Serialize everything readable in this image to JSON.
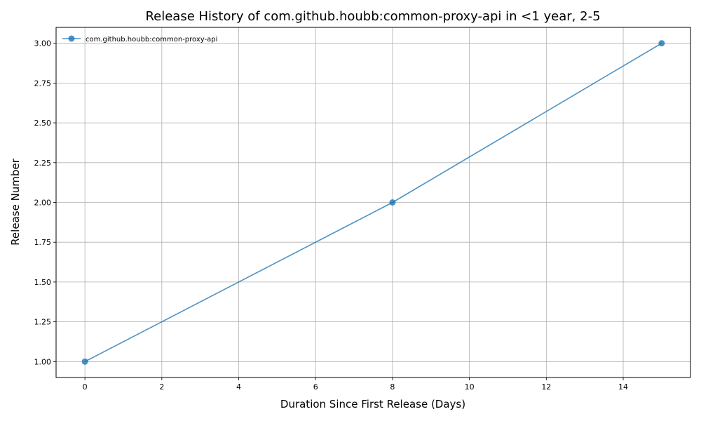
{
  "chart_data": {
    "type": "line",
    "title": "Release History of com.github.houbb:common-proxy-api in <1 year, 2-5",
    "xlabel": "Duration Since First Release (Days)",
    "ylabel": "Release Number",
    "xlim": [
      -0.75,
      15.75
    ],
    "ylim": [
      0.9,
      3.1
    ],
    "xticks": [
      0,
      2,
      4,
      6,
      8,
      10,
      12,
      14
    ],
    "xtick_labels": [
      "0",
      "2",
      "4",
      "6",
      "8",
      "10",
      "12",
      "14"
    ],
    "yticks": [
      1.0,
      1.25,
      1.5,
      1.75,
      2.0,
      2.25,
      2.5,
      2.75,
      3.0
    ],
    "ytick_labels": [
      "1.00",
      "1.25",
      "1.50",
      "1.75",
      "2.00",
      "2.25",
      "2.50",
      "2.75",
      "3.00"
    ],
    "grid": true,
    "legend_position": "top-left",
    "series": [
      {
        "name": "com.github.houbb:common-proxy-api",
        "color": "#1f77b4",
        "marker": "circle",
        "x": [
          0,
          8,
          15
        ],
        "y": [
          1,
          2,
          3
        ]
      }
    ]
  }
}
